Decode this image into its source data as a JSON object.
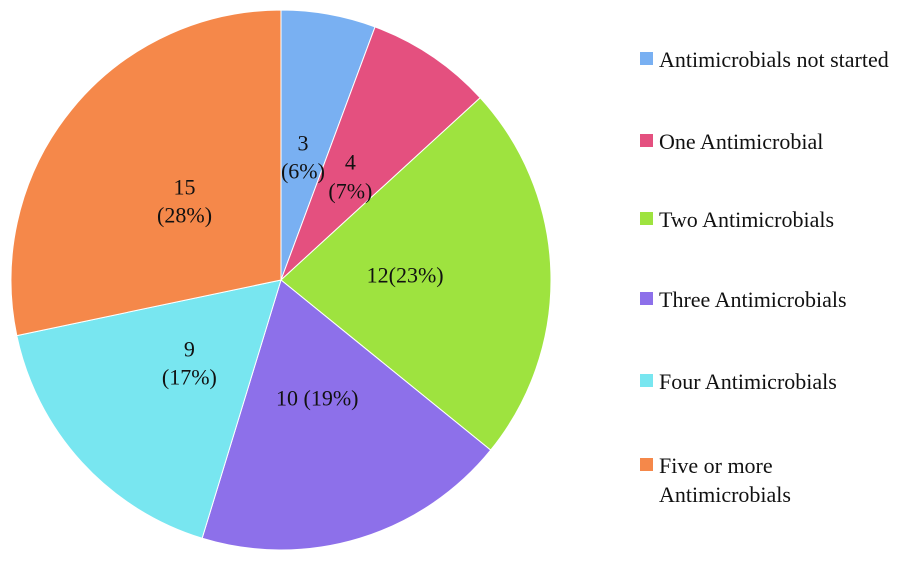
{
  "chart_data": {
    "type": "pie",
    "categories": [
      "Antimicrobials not started",
      "One Antimicrobial",
      "Two Antimicrobials",
      "Three Antimicrobials",
      "Four Antimicrobials",
      "Five or more Antimicrobials"
    ],
    "values": [
      3,
      4,
      12,
      10,
      9,
      15
    ],
    "value_labels": [
      "3\n(6%)",
      "4\n(7%)",
      "12(23%)",
      "10 (19%)",
      "9\n(17%)",
      "15\n(28%)"
    ],
    "colors": [
      "#79b0f2",
      "#e4507f",
      "#9ee33f",
      "#8d70ea",
      "#78e6f0",
      "#f5884a"
    ]
  }
}
